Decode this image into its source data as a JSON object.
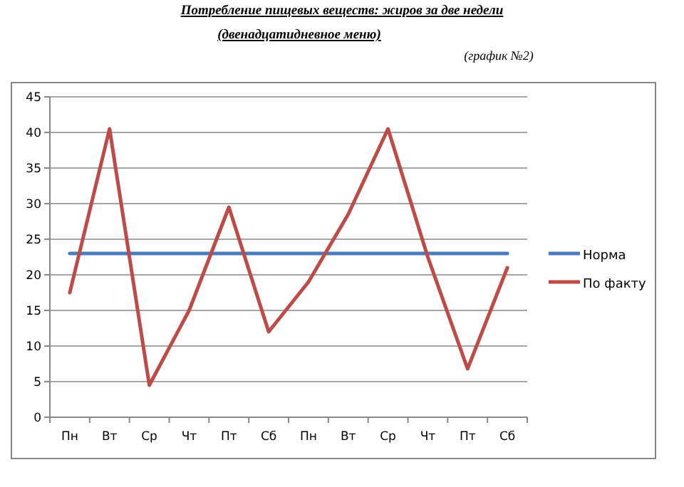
{
  "chart_data": {
    "type": "line",
    "title": "Потребление пищевых веществ: жиров за две недели",
    "subtitle": "(двенадцатидневное меню)",
    "annotations": [
      "(график №2)"
    ],
    "categories": [
      "Пн",
      "Вт",
      "Ср",
      "Чт",
      "Пт",
      "Сб",
      "Пн",
      "Вт",
      "Ср",
      "Чт",
      "Пт",
      "Сб"
    ],
    "series": [
      {
        "name": "Норма",
        "color": "#4a7ebb",
        "values": [
          23,
          23,
          23,
          23,
          23,
          23,
          23,
          23,
          23,
          23,
          23,
          23
        ]
      },
      {
        "name": "По факту",
        "color": "#be4b48",
        "values": [
          17.5,
          40.5,
          4.5,
          15,
          29.5,
          12,
          19,
          28.5,
          40.5,
          22.5,
          6.8,
          21
        ]
      }
    ],
    "ylim": [
      0,
      45
    ],
    "yticks": [
      0,
      5,
      10,
      15,
      20,
      25,
      30,
      35,
      40,
      45
    ],
    "grid": "y",
    "legend": "right",
    "marker": "none",
    "line_style": "solid"
  }
}
